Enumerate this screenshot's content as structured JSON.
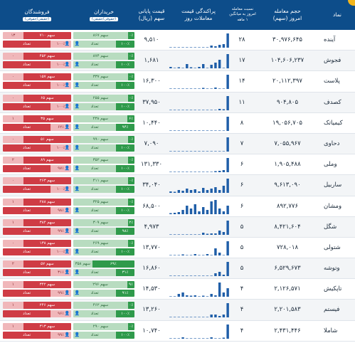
{
  "header": {
    "symbol": "نماد",
    "volume": "حجم معامله",
    "volume_sub": "امروز (سهم)",
    "ratio_1": "نسبت معامله",
    "ratio_2": "امروز به میانگین",
    "ratio_3": "۱ ماهه",
    "dispersion_1": "پراکندگی قیمت",
    "dispersion_2": "معاملات روز",
    "price_1": "قیمت پایانی",
    "price_2": "سهم (ریال)",
    "buyers": "خریداران",
    "buyers_sub": "(حقوقی/حقیقی)",
    "sellers": "فروشندگان",
    "sellers_sub": "(حقیقی/حقوقی)"
  },
  "legend_words": {
    "share": "سهم",
    "count": "تعداد"
  },
  "rows": [
    {
      "name": "آینده",
      "volume": "۳۰,۹۷۶,۶۴۵",
      "ratio": "۲۸",
      "price": "۹,۵۱۰",
      "spark": [
        0,
        0,
        0,
        0,
        0,
        0,
        0,
        0,
        0,
        0,
        0.15,
        0.1,
        0.2,
        0.25,
        1
      ],
      "buy_top": [
        "۰٪",
        "۱۰۰٪"
      ],
      "buy_bot": [
        "۸۶۷",
        "۰"
      ],
      "sell_top": [
        "۱۰۰٪",
        "۰٪"
      ],
      "sell_bot": [
        "۷۱۰",
        "۱۳"
      ]
    },
    {
      "name": "فجوش",
      "volume": "۱۰۴,۶۰۶,۲۳۷",
      "ratio": "۱۷",
      "price": "۱,۶۸۱",
      "spark": [
        0.1,
        0,
        0.05,
        0,
        0.3,
        0.05,
        0,
        0.1,
        0.3,
        0,
        0.25,
        0.4,
        0.6,
        0,
        1
      ],
      "buy_top": [
        "۰٪",
        "۱۰۰٪"
      ],
      "buy_bot": [
        "۸۷۴",
        "۰"
      ],
      "sell_top": [
        "۱۰۰٪",
        "۰٪"
      ],
      "sell_bot": [
        "۴۵۲",
        "۰"
      ]
    },
    {
      "name": "پلاست",
      "volume": "۲۰,۱۱۲,۳۹۷",
      "ratio": "۱۴",
      "price": "۱۶,۳۰۰",
      "spark": [
        0,
        0,
        0,
        0,
        0,
        0,
        0,
        0,
        0.05,
        0,
        0,
        0.1,
        0,
        0,
        1
      ],
      "buy_top": [
        "۰٪",
        "۱۰۰٪"
      ],
      "buy_bot": [
        "۳۳۷",
        "۰"
      ],
      "sell_top": [
        "۱۰۰٪",
        "۰٪"
      ],
      "sell_bot": [
        "۱۵۷",
        "۰"
      ]
    },
    {
      "name": "کصدف",
      "volume": "۹۰۴,۸۰۵",
      "ratio": "۱۱",
      "price": "۳۷,۹۵۰",
      "spark": [
        0,
        0,
        0,
        0,
        0,
        0,
        0,
        0,
        0,
        0,
        0,
        0,
        0.1,
        0.05,
        1
      ],
      "buy_top": [
        "۰٪",
        "۱۰۰٪"
      ],
      "buy_bot": [
        "۲۵۵",
        "۰"
      ],
      "sell_top": [
        "۱۰۰٪",
        "۰٪"
      ],
      "sell_bot": [
        "۶۵",
        "۰"
      ]
    },
    {
      "name": "کیمیاتک",
      "volume": "۱۹,۰۵۶,۷۰۵",
      "ratio": "۸",
      "price": "۱۰,۴۴۰",
      "spark": [
        0,
        0,
        0,
        0,
        0,
        0,
        0,
        0,
        0,
        0,
        0,
        0,
        0,
        0,
        1
      ],
      "buy_top": [
        "۶٪",
        "۹۴٪"
      ],
      "buy_bot": [
        "۴۳۸",
        "۱"
      ],
      "sell_top": [
        "۶۲٪",
        "۳۸٪"
      ],
      "sell_bot": [
        "۳۵",
        "۱"
      ]
    },
    {
      "name": "دحاوی",
      "volume": "۷,۰۵۵,۹۶۷",
      "ratio": "۷",
      "price": "۷,۰۹۰",
      "spark": [
        0,
        0,
        0,
        0,
        0,
        0,
        0,
        0,
        0,
        0,
        0,
        0,
        0,
        0,
        1
      ],
      "buy_top": [
        "۰٪",
        "۱۰۰٪"
      ],
      "buy_bot": [
        "۹۹۰",
        "۰"
      ],
      "sell_top": [
        "۱۰۰٪",
        "۰٪"
      ],
      "sell_bot": [
        "۵۱",
        "۰"
      ]
    },
    {
      "name": "وملی",
      "volume": "۱,۹۰۵,۴۸۸",
      "ratio": "۶",
      "price": "۱۳۱,۳۳۰",
      "spark": [
        0,
        0,
        0,
        0,
        0,
        0,
        0,
        0,
        0,
        0,
        0,
        0.05,
        0.1,
        0.15,
        1
      ],
      "buy_top": [
        "۰٪",
        "۱۰۰٪"
      ],
      "buy_bot": [
        "۳۵۲",
        "۰"
      ],
      "sell_top": [
        "۹۷٪",
        "۳٪"
      ],
      "sell_bot": [
        "۸۹",
        "۲"
      ]
    },
    {
      "name": "ساربیل",
      "volume": "۹,۶۱۳,۰۹۰",
      "ratio": "۶",
      "price": "۳۴,۰۴۰",
      "spark": [
        0.1,
        0.05,
        0.2,
        0.15,
        0.3,
        0.2,
        0.25,
        0.1,
        0.35,
        0.2,
        0.3,
        0.4,
        0.2,
        0.5,
        1
      ],
      "buy_top": [
        "۰٪",
        "۱۰۰٪"
      ],
      "buy_bot": [
        "۴۱۱",
        "۰"
      ],
      "sell_top": [
        "۱۰۰٪",
        "۰٪"
      ],
      "sell_bot": [
        "۲۶۳",
        "۰"
      ]
    },
    {
      "name": "ومشان",
      "volume": "۸۹۲,۷۷۶",
      "ratio": "۶",
      "price": "۶۸,۵۰۰",
      "spark": [
        0.05,
        0.1,
        0.15,
        0.3,
        0.6,
        0.4,
        0.7,
        0.2,
        0.5,
        0.3,
        0.9,
        1,
        0.4,
        0.2,
        0.6
      ],
      "buy_top": [
        "۰٪",
        "۱۰۰٪"
      ],
      "buy_bot": [
        "۳۲۵",
        "۰"
      ],
      "sell_top": [
        "۹۸٪",
        "۲٪"
      ],
      "sell_bot": [
        "۲۸۸",
        "۱"
      ]
    },
    {
      "name": "شگل",
      "volume": "۸,۴۲۱,۶۰۴",
      "ratio": "۵",
      "price": "۴,۹۷۳",
      "spark": [
        0,
        0,
        0,
        0,
        0,
        0,
        0,
        0,
        0.15,
        0.05,
        0.1,
        0.1,
        0.3,
        0.2,
        1
      ],
      "buy_top": [
        "۲٪",
        "۹۸٪"
      ],
      "buy_bot": [
        "۳۰۹",
        "۱"
      ],
      "sell_top": [
        "۹۹٪",
        "۱٪"
      ],
      "sell_bot": [
        "۳۸۴",
        "۱"
      ]
    },
    {
      "name": "شتولی",
      "volume": "۷۲۸,۰۱۸",
      "ratio": "۵",
      "price": "۱۳,۷۷۰",
      "spark": [
        0,
        0,
        0,
        0.05,
        0,
        0,
        0.1,
        0,
        0,
        0.1,
        0,
        0.5,
        0.2,
        0,
        1
      ],
      "buy_top": [
        "۰٪",
        "۱۰۰٪"
      ],
      "buy_bot": [
        "۲۶۹",
        "۰"
      ],
      "sell_top": [
        "۱۰۰٪",
        "۰٪"
      ],
      "sell_bot": [
        "۱۳۸",
        "۰"
      ]
    },
    {
      "name": "وتوشه",
      "volume": "۶,۵۲۹,۶۷۳",
      "ratio": "۵",
      "price": "۱۶,۸۶۰",
      "spark": [
        0,
        0,
        0,
        0,
        0,
        0,
        0,
        0,
        0,
        0,
        0,
        0.2,
        0.3,
        0.1,
        1
      ],
      "buy_top": [
        "۶۹٪",
        "۳۱٪"
      ],
      "buy_bot": [
        "۳۵۸",
        "۲"
      ],
      "sell_top": [
        "۳۱٪",
        "۶۹٪"
      ],
      "sell_bot": [
        "۵۷",
        "۲"
      ]
    },
    {
      "name": "تاپکیش",
      "volume": "۲,۱۲۶,۵۷۱",
      "ratio": "۴",
      "price": "۱۴,۵۳۰",
      "spark": [
        0,
        0,
        0.2,
        0.3,
        0.1,
        0.05,
        0.1,
        0,
        0.05,
        0,
        0.2,
        0.1,
        1,
        0.3,
        0.6
      ],
      "buy_top": [
        "۹٪",
        "۹۱٪"
      ],
      "buy_bot": [
        "۲۹۶",
        "۱"
      ],
      "sell_top": [
        "۹۹٪",
        "۱٪"
      ],
      "sell_bot": [
        "۳۴۲",
        "۱"
      ]
    },
    {
      "name": "فیستم",
      "volume": "۲,۲۰۱,۵۸۳",
      "ratio": "۴",
      "price": "۱۳,۲۶۰",
      "spark": [
        0,
        0,
        0,
        0,
        0,
        0,
        0,
        0,
        0,
        0,
        0.2,
        0.2,
        0.1,
        0.2,
        1
      ],
      "buy_top": [
        "۰٪",
        "۱۰۰٪"
      ],
      "buy_bot": [
        "۴۶۲",
        "۰"
      ],
      "sell_top": [
        "۹۶٪",
        "۴٪"
      ],
      "sell_bot": [
        "۲۴۶",
        "۱"
      ]
    },
    {
      "name": "شاملا",
      "volume": "۲,۴۳۱,۴۴۶",
      "ratio": "۴",
      "price": "۱۰,۷۴۰",
      "spark": [
        0,
        0,
        0,
        0.1,
        0,
        0,
        0,
        0,
        0,
        0,
        0.1,
        0,
        0,
        0.05,
        1
      ],
      "buy_top": [
        "۰٪",
        "۱۰۰٪"
      ],
      "buy_bot": [
        "۲۹۰",
        "۰"
      ],
      "sell_top": [
        "۹۹٪",
        "۱٪"
      ],
      "sell_bot": [
        "۳۱۳",
        "۱"
      ]
    }
  ]
}
